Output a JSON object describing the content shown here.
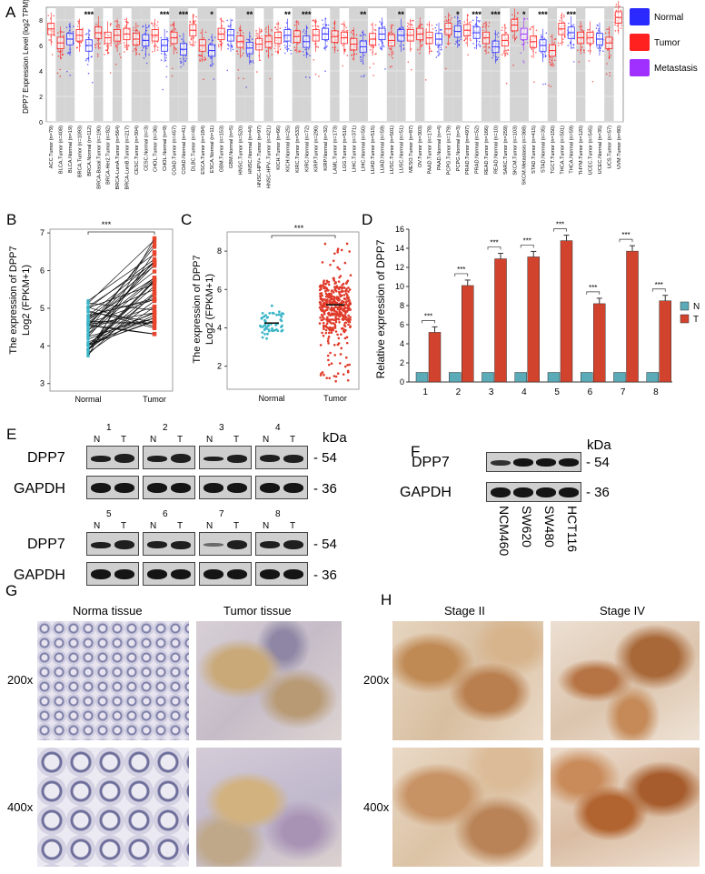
{
  "panels": {
    "A": "A",
    "B": "B",
    "C": "C",
    "D": "D",
    "E": "E",
    "F": "F",
    "G": "G",
    "H": "H"
  },
  "panelA": {
    "ylabel": "DPP7 Expression Level (log2 TPM)",
    "yticks": [
      "0",
      "2",
      "4",
      "6",
      "8"
    ],
    "legend": [
      {
        "label": "Normal",
        "color": "#2a2aff"
      },
      {
        "label": "Tumor",
        "color": "#ff2020"
      },
      {
        "label": "Metastasis",
        "color": "#a030ff"
      }
    ],
    "categories": [
      "ACC.Tumor (n=79)",
      "BLCA.Tumor (n=408)",
      "BLCA.Normal (n=19)",
      "BRCA.Tumor (n=1093)",
      "BRCA.Normal (n=112)",
      "BRCA-Basal.Tumor (n=190)",
      "BRCA-Her2.Tumor (n=82)",
      "BRCA-LumA.Tumor (n=564)",
      "BRCA-LumB.Tumor (n=217)",
      "CESC.Tumor (n=304)",
      "CESC.Normal (n=3)",
      "CHOL.Tumor (n=36)",
      "CHOL.Normal (n=9)",
      "COAD.Tumor (n=457)",
      "COAD.Normal (n=41)",
      "DLBC.Tumor (n=48)",
      "ESCA.Tumor (n=184)",
      "ESCA.Normal (n=11)",
      "GBM.Tumor (n=153)",
      "GBM.Normal (n=5)",
      "HNSC.Tumor (n=520)",
      "HNSC.Normal (n=44)",
      "HNSC-HPV+.Tumor (n=97)",
      "HNSC-HPV-.Tumor (n=421)",
      "KICH.Tumor (n=66)",
      "KICH.Normal (n=25)",
      "KIRC.Tumor (n=533)",
      "KIRC.Normal (n=72)",
      "KIRP.Tumor (n=290)",
      "KIRP.Normal (n=32)",
      "LAML.Tumor (n=173)",
      "LGG.Tumor (n=516)",
      "LIHC.Tumor (n=371)",
      "LIHC.Normal (n=50)",
      "LUAD.Tumor (n=515)",
      "LUAD.Normal (n=59)",
      "LUSC.Tumor (n=501)",
      "LUSC.Normal (n=51)",
      "MESO.Tumor (n=87)",
      "OV.Tumor (n=303)",
      "PAAD.Tumor (n=178)",
      "PAAD.Normal (n=4)",
      "PCPG.Tumor (n=179)",
      "PCPG.Normal (n=3)",
      "PRAD.Tumor (n=497)",
      "PRAD.Normal (n=52)",
      "READ.Tumor (n=166)",
      "READ.Normal (n=10)",
      "SARC.Tumor (n=259)",
      "SKCM.Tumor (n=103)",
      "SKCM.Metastasis (n=368)",
      "STAD.Tumor (n=415)",
      "STAD.Normal (n=35)",
      "TGCT.Tumor (n=150)",
      "THCA.Tumor (n=501)",
      "THCA.Normal (n=59)",
      "THYM.Tumor (n=120)",
      "UCEC.Tumor (n=545)",
      "UCEC.Normal (n=35)",
      "UCS.Tumor (n=57)",
      "UVM.Tumor (n=80)"
    ],
    "medians": [
      7.3,
      6.2,
      6.5,
      6.8,
      6.0,
      7.0,
      6.6,
      6.8,
      6.9,
      6.5,
      6.4,
      6.8,
      6.0,
      6.6,
      5.7,
      7.2,
      6.0,
      5.6,
      6.9,
      6.8,
      6.3,
      5.8,
      6.1,
      6.3,
      6.6,
      6.8,
      6.7,
      6.3,
      6.8,
      6.9,
      6.7,
      6.6,
      6.1,
      5.9,
      6.5,
      6.9,
      6.4,
      6.8,
      6.8,
      6.9,
      6.6,
      6.5,
      7.3,
      7.1,
      7.2,
      7.0,
      6.6,
      5.9,
      6.4,
      7.6,
      6.9,
      6.3,
      6.0,
      5.6,
      7.3,
      7.0,
      6.6,
      6.6,
      6.5,
      6.2,
      8.2
    ],
    "sig": [
      {
        "label": "***",
        "pos": 4
      },
      {
        "label": "***",
        "pos": 12
      },
      {
        "label": "***",
        "pos": 14
      },
      {
        "label": "*",
        "pos": 17
      },
      {
        "label": "**",
        "pos": 21
      },
      {
        "label": "**",
        "pos": 25
      },
      {
        "label": "***",
        "pos": 27
      },
      {
        "label": "**",
        "pos": 33
      },
      {
        "label": "**",
        "pos": 37
      },
      {
        "label": "*",
        "pos": 43
      },
      {
        "label": "***",
        "pos": 45
      },
      {
        "label": "***",
        "pos": 47
      },
      {
        "label": "*",
        "pos": 50
      },
      {
        "label": "***",
        "pos": 52
      },
      {
        "label": "***",
        "pos": 55
      }
    ]
  },
  "panelB": {
    "ylabel1": "The expression of DPP7",
    "ylabel2": "Log2 (FPKM+1)",
    "yticks": [
      "3",
      "4",
      "5",
      "6",
      "7"
    ],
    "xcats": [
      "Normal",
      "Tumor"
    ],
    "sig": "***"
  },
  "panelC": {
    "ylabel1": "The expression of DPP7",
    "ylabel2": "Log2 (FPKM+1)",
    "yticks": [
      "2",
      "4",
      "6",
      "8"
    ],
    "xcats": [
      "Normal",
      "Tumor"
    ],
    "sig": "***"
  },
  "chart_data": {
    "type": "bar",
    "ylabel": "Relative expression of DPP7",
    "ylim": [
      0,
      16
    ],
    "yticks": [
      "0",
      "2",
      "4",
      "6",
      "8",
      "10",
      "12",
      "14",
      "16"
    ],
    "categories": [
      "1",
      "2",
      "3",
      "4",
      "5",
      "6",
      "7",
      "8"
    ],
    "series": [
      {
        "name": "N",
        "color": "#5aaab8",
        "values": [
          1,
          1,
          1,
          1,
          1,
          1,
          1,
          1
        ]
      },
      {
        "name": "T",
        "color": "#d2432d",
        "values": [
          5.2,
          10.1,
          12.9,
          13.1,
          14.8,
          8.2,
          13.7,
          8.5
        ]
      }
    ],
    "sig": [
      "***",
      "***",
      "***",
      "***",
      "***",
      "***",
      "***",
      "***"
    ],
    "legend_position": "right"
  },
  "panelE": {
    "samples_top": [
      "1",
      "2",
      "3",
      "4"
    ],
    "samples_bottom": [
      "5",
      "6",
      "7",
      "8"
    ],
    "lane_n": "N",
    "lane_t": "T",
    "row1": "DPP7",
    "row2": "GAPDH",
    "kda": "kDa",
    "mw1": "- 54",
    "mw2": "- 36"
  },
  "panelF": {
    "kda": "kDa",
    "row1": "DPP7",
    "row2": "GAPDH",
    "mw1": "- 54",
    "mw2": "- 36",
    "cells": [
      "NCM460",
      "SW620",
      "SW480",
      "HCT116"
    ]
  },
  "panelG": {
    "col1": "Norma tissue",
    "col2": "Tumor tissue",
    "row1": "200x",
    "row2": "400x"
  },
  "panelH": {
    "col1": "Stage II",
    "col2": "Stage IV",
    "row1": "200x",
    "row2": "400x"
  }
}
